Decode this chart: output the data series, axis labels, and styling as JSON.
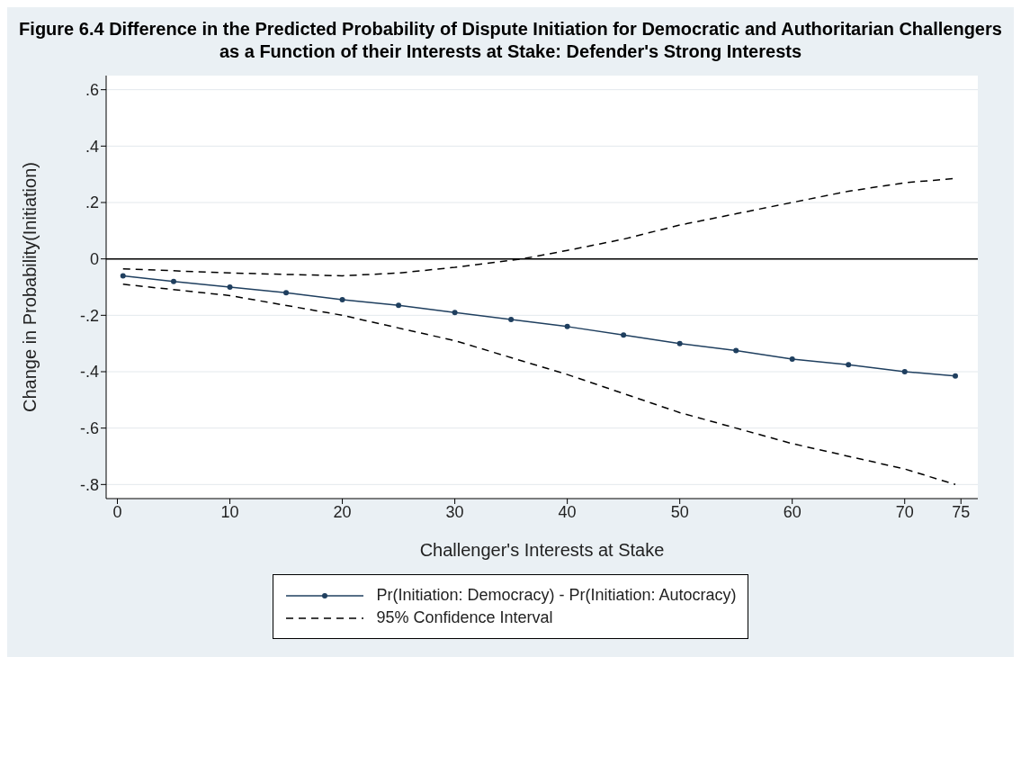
{
  "chart_data": {
    "type": "line",
    "title": "Figure 6.4 Difference in the Predicted Probability of Dispute Initiation for Democratic and Authoritarian Challengers as a Function of their Interests at Stake: Defender's Strong Interests",
    "xlabel": "Challenger's Interests at Stake",
    "ylabel": "Change in Probability(Initiation)",
    "series": [
      {
        "name": "Pr(Initiation: Democracy) - Pr(Initiation: Autocracy)",
        "color": "#1f3f5f",
        "marker": "circle",
        "line_style": "solid",
        "x": [
          0.5,
          5,
          10,
          15,
          20,
          25,
          30,
          35,
          40,
          45,
          50,
          55,
          60,
          65,
          70,
          74.5
        ],
        "values": [
          -0.06,
          -0.08,
          -0.1,
          -0.12,
          -0.145,
          -0.165,
          -0.19,
          -0.215,
          -0.24,
          -0.27,
          -0.3,
          -0.325,
          -0.355,
          -0.375,
          -0.4,
          -0.415
        ]
      },
      {
        "name": "95% Confidence Interval",
        "color": "#000000",
        "marker": "none",
        "line_style": "dashed",
        "x": [
          0.5,
          10,
          20,
          30,
          40,
          50,
          60,
          70,
          74.5
        ],
        "values": [
          -0.09,
          -0.13,
          -0.2,
          -0.29,
          -0.41,
          -0.545,
          -0.655,
          -0.745,
          -0.8
        ]
      },
      {
        "color": "#000000",
        "marker": "none",
        "line_style": "dashed",
        "x": [
          0.5,
          10,
          20,
          25,
          30,
          36,
          40,
          45,
          50,
          55,
          60,
          65,
          70,
          74.5
        ],
        "values": [
          -0.035,
          -0.05,
          -0.06,
          -0.05,
          -0.03,
          0.0,
          0.03,
          0.07,
          0.12,
          0.16,
          0.2,
          0.24,
          0.27,
          0.285
        ]
      }
    ],
    "xlim": [
      -1,
      76.5
    ],
    "xticks": [
      0,
      10,
      20,
      30,
      40,
      50,
      60,
      70,
      75
    ],
    "ylim": [
      -0.85,
      0.65
    ],
    "yticks": [
      {
        "value": 0.6,
        "label": ".6"
      },
      {
        "value": 0.4,
        "label": ".4"
      },
      {
        "value": 0.2,
        "label": ".2"
      },
      0,
      {
        "value": -0.2,
        "label": "-.2"
      },
      {
        "value": -0.4,
        "label": "-.4"
      },
      {
        "value": -0.6,
        "label": "-.6"
      },
      {
        "value": -0.8,
        "label": "-.8"
      }
    ],
    "ref_lines": [
      {
        "axis": "y",
        "value": 0,
        "color": "#000000"
      }
    ],
    "grid": "y",
    "legend": "bottom"
  }
}
